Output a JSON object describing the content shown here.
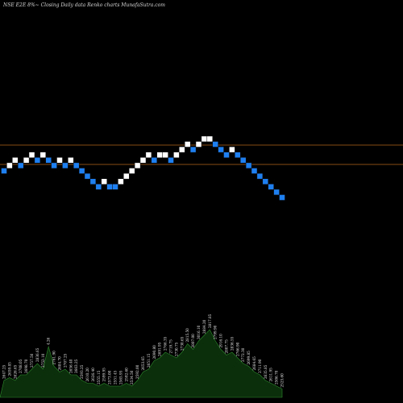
{
  "header": {
    "title": "NSE E2E 8%~  Closing Daily data  Renko  charts MunafaSutra.com"
  },
  "colors": {
    "background": "#000000",
    "up_brick": "#ffffff",
    "down_brick": "#1e7ff0",
    "brick_stroke": "#0a0a0a",
    "ref_line": "#b5651d",
    "volume_fill": "#0b2e0b",
    "volume_stroke": "#2e8b2e",
    "label_text": "#e6e6e6"
  },
  "chart_data": {
    "type": "renko",
    "brick_directions": [
      "down",
      "up",
      "up",
      "down",
      "up",
      "up",
      "down",
      "up",
      "down",
      "down",
      "up",
      "down",
      "up",
      "down",
      "down",
      "down",
      "down",
      "down",
      "up",
      "down",
      "down",
      "up",
      "up",
      "up",
      "up",
      "up",
      "up",
      "down",
      "up",
      "up",
      "down",
      "up",
      "up",
      "up",
      "down",
      "up",
      "up",
      "up",
      "down",
      "down",
      "down",
      "up",
      "down",
      "down",
      "down",
      "down",
      "down",
      "down",
      "down",
      "down",
      "down"
    ],
    "brick_levels": [
      0,
      1,
      2,
      1,
      2,
      3,
      2,
      3,
      2,
      1,
      2,
      1,
      2,
      1,
      0,
      -1,
      -2,
      -3,
      -2,
      -3,
      -3,
      -2,
      -1,
      0,
      1,
      2,
      3,
      2,
      3,
      3,
      2,
      3,
      4,
      5,
      4,
      5,
      6,
      6,
      5,
      4,
      3,
      4,
      3,
      2,
      1,
      0,
      -1,
      -2,
      -3,
      -4,
      -5
    ],
    "reference_lines": [
      "upper",
      "lower"
    ],
    "volume_labels": [
      "2647.25",
      "2659.85",
      "2626.65",
      "2708.05",
      "2698.70",
      "2757.50",
      "2836.65",
      "2752.10",
      "4.26",
      "2761.90",
      "2684.70",
      "2707.25",
      "2656.40",
      "2663.25",
      "2593.25",
      "2610.20",
      "2626.40",
      "2555.15",
      "2599.95",
      "2573.00",
      "2551.45",
      "2565.95",
      "2592.60",
      "2534.50",
      "2592.00",
      "2653.65",
      "2651.15",
      "2690.80",
      "2691.95",
      "2766.35",
      "2719.75",
      "2730.75",
      "2730.65",
      "2815.50",
      "2807.00",
      "3016.10",
      "2884.20",
      "2817.85",
      "2799.90",
      "2916.10",
      "2807.75",
      "2836.55",
      "2766.90",
      "2772.30",
      "2699.85",
      "2684.65",
      "2711.90",
      "2635.85",
      "2611.95",
      "2506.70",
      "2525.60"
    ],
    "volume_values": [
      6,
      7,
      6,
      8,
      8,
      10,
      12,
      10,
      18,
      11,
      9,
      10,
      8,
      8,
      6,
      5,
      5,
      4,
      5,
      4,
      4,
      4,
      5,
      4,
      6,
      9,
      10,
      13,
      14,
      16,
      15,
      14,
      16,
      19,
      17,
      20,
      22,
      24,
      20,
      17,
      15,
      16,
      14,
      12,
      11,
      9,
      8,
      6,
      5,
      4,
      3
    ]
  }
}
